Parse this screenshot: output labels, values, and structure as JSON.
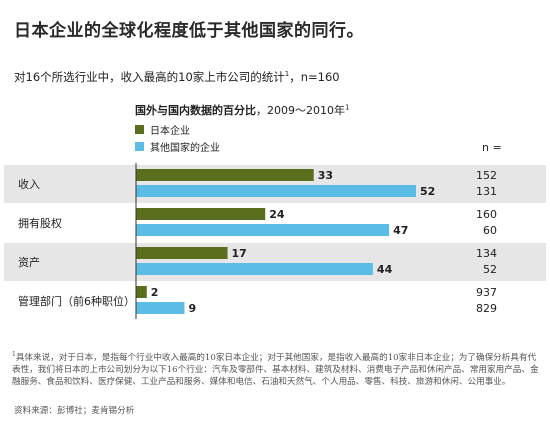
{
  "title": "日本企业的全球化程度低于其他国家的同行。",
  "subtitle": "对16个所选行业中，收入最高的10家上市公司的统计",
  "subtitle_sup": "1",
  "subtitle_n": "，n=160",
  "colors": {
    "japan": "#5b6e1d",
    "other": "#5bbde6",
    "band": "#e6e6e6"
  },
  "chart_data": {
    "type": "bar",
    "orientation": "horizontal",
    "title": "国外与国内数据的百分比",
    "title_suffix": "，2009～2010年",
    "title_sup": "1",
    "categories": [
      "收入",
      "拥有股权",
      "资产",
      "管理部门（前6种职位）"
    ],
    "series": [
      {
        "name": "日本企业",
        "values": [
          33,
          24,
          17,
          2
        ],
        "n": [
          "152",
          "160",
          "134",
          "937"
        ]
      },
      {
        "name": "其他国家的企业",
        "values": [
          52,
          47,
          44,
          9
        ],
        "n": [
          "131",
          "60",
          "52",
          "829"
        ]
      }
    ],
    "n_label": "n =",
    "shaded_rows": [
      0,
      2
    ],
    "xlim": [
      0,
      55
    ],
    "grid": false
  },
  "footnote": {
    "sup": "1",
    "text": "具体来说，对于日本，是指每个行业中收入最高的10家日本企业；对于其他国家，是指收入最高的10家非日本企业；为了确保分析具有代表性，我们将日本的上市公司划分为以下16个行业：汽车及零部件、基本材料、建筑及材料、消费电子产品和休闲产品、常用家用产品、金融服务、食品和饮料、医疗保健、工业产品和服务、媒体和电信、石油和天然气、个人用品、零售、科技、旅游和休闲、公用事业。"
  },
  "source": "资料来源：彭博社；麦肯锡分析"
}
